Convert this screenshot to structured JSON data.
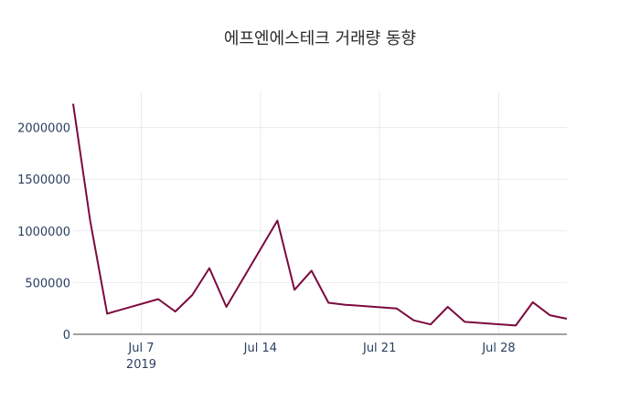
{
  "chart_data": {
    "type": "line",
    "title": "에프엔에스테크 거래량 동향",
    "xlabel": "",
    "ylabel": "",
    "year_label": "2019",
    "x": [
      "2019-07-03",
      "2019-07-04",
      "2019-07-05",
      "2019-07-08",
      "2019-07-09",
      "2019-07-10",
      "2019-07-11",
      "2019-07-12",
      "2019-07-15",
      "2019-07-16",
      "2019-07-17",
      "2019-07-18",
      "2019-07-19",
      "2019-07-22",
      "2019-07-23",
      "2019-07-24",
      "2019-07-25",
      "2019-07-26",
      "2019-07-29",
      "2019-07-30",
      "2019-07-31",
      "2019-08-01"
    ],
    "series": [
      {
        "color": "#7b0a3f",
        "values": [
          2230000,
          1100000,
          200000,
          340000,
          220000,
          380000,
          640000,
          265000,
          1100000,
          430000,
          615000,
          305000,
          285000,
          250000,
          135000,
          95000,
          265000,
          120000,
          85000,
          310000,
          185000,
          150000
        ]
      }
    ],
    "xlim": [
      "2019-07-03",
      "2019-08-01"
    ],
    "ylim": [
      0,
      2350000
    ],
    "x_ticks": [
      {
        "date": "2019-07-07",
        "label": "Jul 7"
      },
      {
        "date": "2019-07-14",
        "label": "Jul 14"
      },
      {
        "date": "2019-07-21",
        "label": "Jul 21"
      },
      {
        "date": "2019-07-28",
        "label": "Jul 28"
      }
    ],
    "y_ticks": [
      {
        "value": 0,
        "label": "0"
      },
      {
        "value": 500000,
        "label": "500000"
      },
      {
        "value": 1000000,
        "label": "1000000"
      },
      {
        "value": 1500000,
        "label": "1500000"
      },
      {
        "value": 2000000,
        "label": "2000000"
      }
    ],
    "grid": true,
    "legend": "none"
  }
}
